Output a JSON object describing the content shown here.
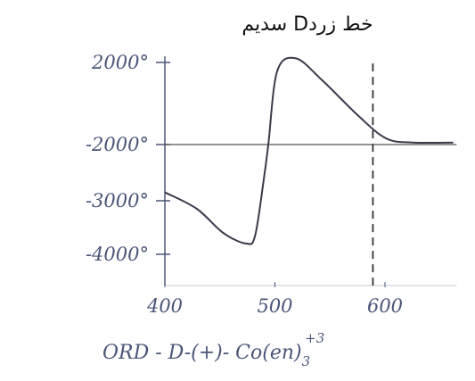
{
  "chart_data": {
    "type": "line",
    "title": "سدیم Dخط زرد",
    "x_label": "ORD - D-(+)- Co(en)",
    "x_label_sub": "3",
    "x_label_sup": "+3",
    "x": [
      400,
      429,
      453,
      474,
      482,
      490,
      494,
      502,
      519,
      543,
      576,
      601,
      625,
      662
    ],
    "values": [
      -2850,
      -3150,
      -3600,
      -3800,
      -3650,
      -2600,
      -2000,
      1565,
      2200,
      1130,
      -610,
      -1700,
      -1900,
      -1900
    ],
    "color": "#3a3a4a",
    "xlim": [
      400,
      665
    ],
    "xticks": [
      400,
      500,
      600
    ],
    "ylim": [
      -4500,
      2300
    ],
    "yticks": [
      {
        "value": 2000,
        "label": "2000°"
      },
      {
        "value": -2000,
        "label": "-2000°"
      },
      {
        "value": -3000,
        "label": "-3000°"
      },
      {
        "value": -4000,
        "label": "-4000°"
      }
    ],
    "hline": -2000,
    "vline": 589
  }
}
